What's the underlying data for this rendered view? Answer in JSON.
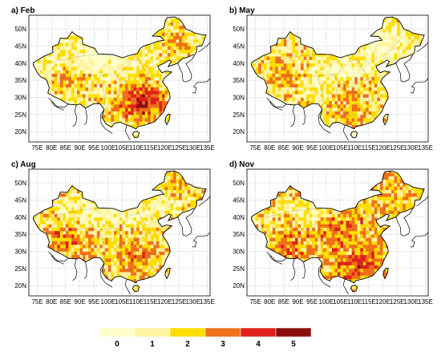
{
  "panels": [
    {
      "id": "feb",
      "title": "a) Feb"
    },
    {
      "id": "may",
      "title": "b) May"
    },
    {
      "id": "aug",
      "title": "c) Aug"
    },
    {
      "id": "nov",
      "title": "d) Nov"
    }
  ],
  "axes": {
    "lon_labels": [
      "75E",
      "80E",
      "85E",
      "90E",
      "95E",
      "100E",
      "105E",
      "110E",
      "115E",
      "120E",
      "125E",
      "130E",
      "135E"
    ],
    "lat_labels": [
      "20N",
      "25N",
      "30N",
      "35N",
      "40N",
      "45N",
      "50N"
    ]
  },
  "legend": {
    "colors": [
      "#ffffcc",
      "#fff3a0",
      "#ffdd00",
      "#f0701a",
      "#e0201a",
      "#8b0d0d"
    ],
    "labels": [
      "0",
      "1",
      "2",
      "3",
      "4",
      "5"
    ]
  }
}
